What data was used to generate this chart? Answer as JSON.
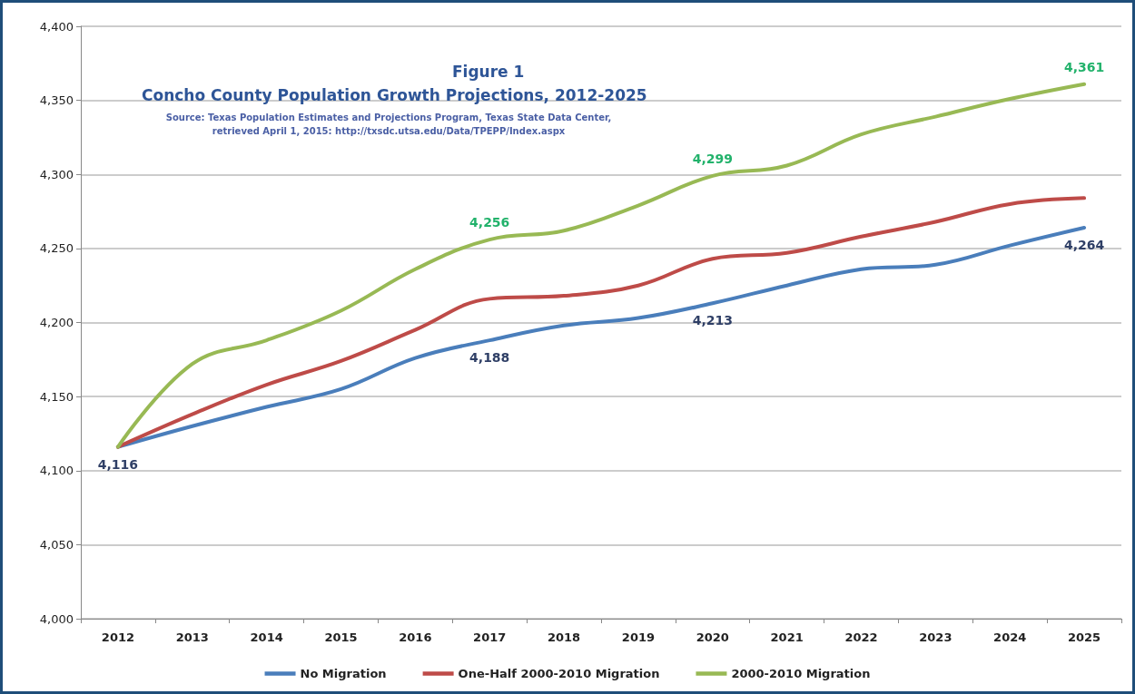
{
  "chart_data": {
    "type": "line",
    "title": "Figure 1",
    "subtitle": "Concho County Population Growth Projections, 2012-2025",
    "annotations": [
      "Source: Texas Population Estimates and Projections Program, Texas State Data Center,\nretrieved April 1, 2015: http://txsdc.utsa.edu/Data/TPEPP/Index.aspx"
    ],
    "categories": [
      "2012",
      "2013",
      "2014",
      "2015",
      "2016",
      "2017",
      "2018",
      "2019",
      "2020",
      "2021",
      "2022",
      "2023",
      "2024",
      "2025"
    ],
    "series": [
      {
        "name": "No Migration",
        "color": "#4a7ebb",
        "values": [
          4116,
          4130,
          4143,
          4155,
          4176,
          4188,
          4198,
          4203,
          4213,
          4225,
          4236,
          4239,
          4252,
          4264
        ],
        "value_labels": [
          "4,116",
          null,
          null,
          null,
          null,
          "4,188",
          null,
          null,
          "4,213",
          null,
          null,
          null,
          null,
          "4,264"
        ]
      },
      {
        "name": "One-Half 2000-2010 Migration",
        "color": "#be4b48",
        "values": [
          4116,
          4138,
          4158,
          4174,
          4195,
          4216,
          4218,
          4225,
          4243,
          4247,
          4258,
          4268,
          4280,
          4284
        ]
      },
      {
        "name": "2000-2010 Migration",
        "color": "#98b954",
        "values": [
          4116,
          4172,
          4188,
          4208,
          4236,
          4256,
          4262,
          4279,
          4299,
          4306,
          4327,
          4339,
          4351,
          4361
        ],
        "value_labels": [
          null,
          null,
          null,
          null,
          null,
          "4,256",
          null,
          null,
          "4,299",
          null,
          null,
          null,
          null,
          "4,361"
        ]
      }
    ],
    "ylim": [
      4000,
      4400
    ],
    "yticks": [
      {
        "value": 4000,
        "label": "4,000"
      },
      {
        "value": 4050,
        "label": "4,050"
      },
      {
        "value": 4100,
        "label": "4,100"
      },
      {
        "value": 4150,
        "label": "4,150"
      },
      {
        "value": 4200,
        "label": "4,200"
      },
      {
        "value": 4250,
        "label": "4,250"
      },
      {
        "value": 4300,
        "label": "4,300"
      },
      {
        "value": 4350,
        "label": "4,350"
      },
      {
        "value": 4400,
        "label": "4,400"
      }
    ],
    "grid": "y",
    "legend": "bottom",
    "marker": "none",
    "line_style": "solid"
  }
}
